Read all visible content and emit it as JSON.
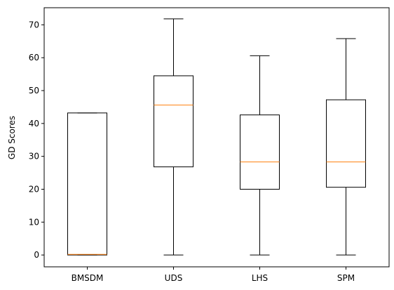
{
  "chart_data": {
    "type": "box",
    "title": "",
    "xlabel": "",
    "ylabel": "GD Scores",
    "ylim": [
      -3.6,
      75.2
    ],
    "yticks": [
      0,
      10,
      20,
      30,
      40,
      50,
      60,
      70
    ],
    "grid": false,
    "categories": [
      "BMSDM",
      "UDS",
      "LHS",
      "SPM"
    ],
    "boxes": [
      {
        "label": "BMSDM",
        "min": 0.0,
        "q1": 0.0,
        "median": 0.2,
        "q3": 43.2,
        "max": 43.2
      },
      {
        "label": "UDS",
        "min": 0.0,
        "q1": 26.8,
        "median": 45.6,
        "q3": 54.5,
        "max": 71.8
      },
      {
        "label": "LHS",
        "min": 0.0,
        "q1": 20.0,
        "median": 28.3,
        "q3": 42.6,
        "max": 60.6
      },
      {
        "label": "SPM",
        "min": 0.0,
        "q1": 20.6,
        "median": 28.3,
        "q3": 47.2,
        "max": 65.8
      }
    ],
    "colors": {
      "box": "#000000",
      "median": "#ff7f0e",
      "frame": "#000000"
    }
  }
}
